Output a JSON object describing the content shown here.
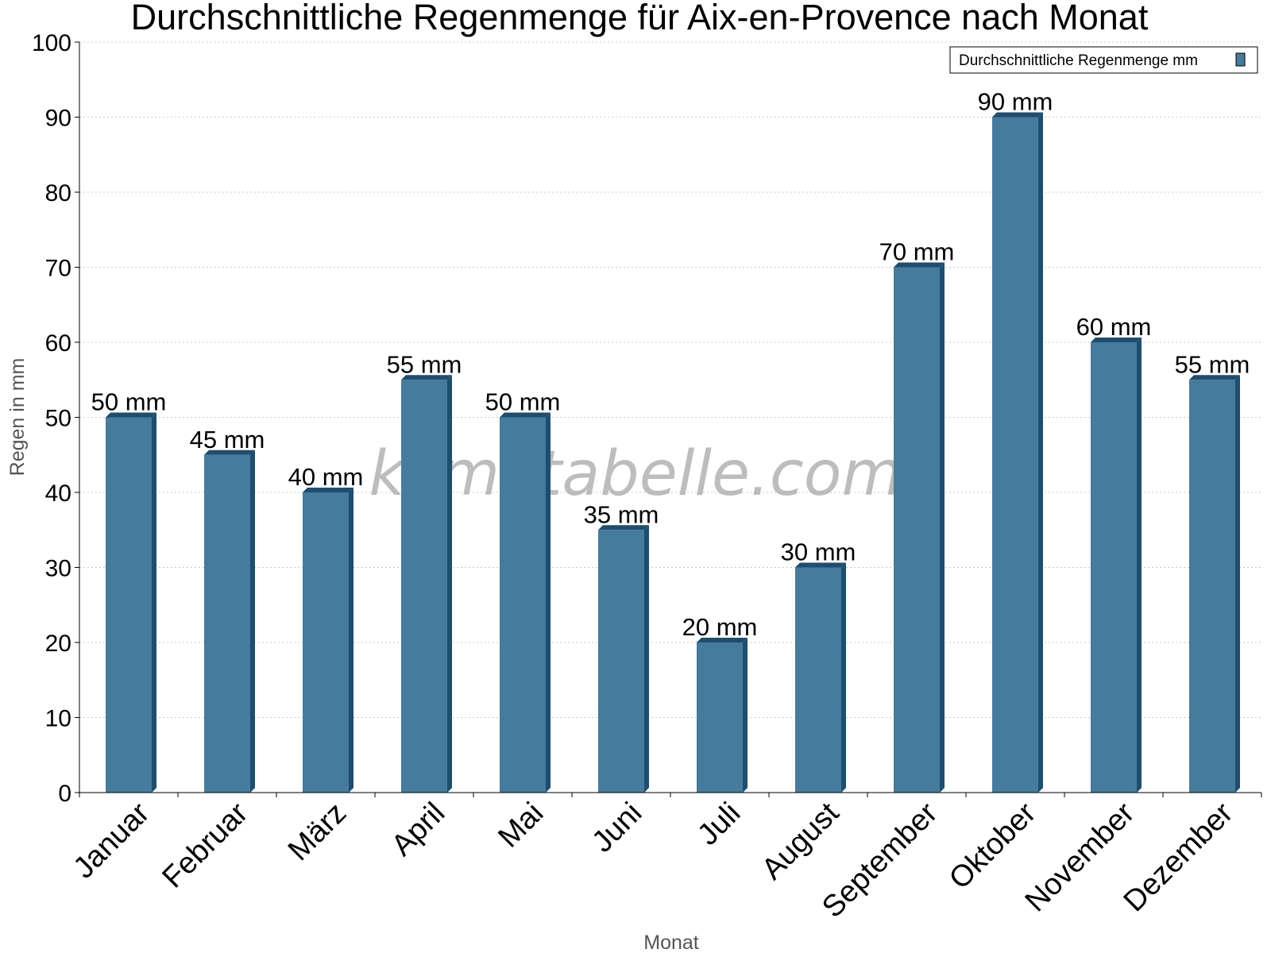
{
  "chart_data": {
    "type": "bar",
    "title": "Durchschnittliche Regenmenge für Aix-en-Provence nach Monat",
    "xlabel": "Monat",
    "ylabel": "Regen in mm",
    "ylim": [
      0,
      100
    ],
    "yticks": [
      "0",
      "10",
      "20",
      "30",
      "40",
      "50",
      "60",
      "70",
      "80",
      "90",
      "100"
    ],
    "categories": [
      "Januar",
      "Februar",
      "März",
      "April",
      "Mai",
      "Juni",
      "Juli",
      "August",
      "September",
      "Oktober",
      "November",
      "Dezember"
    ],
    "series": [
      {
        "name": "Durchschnittliche Regenmenge mm",
        "values": [
          50,
          45,
          40,
          55,
          50,
          35,
          20,
          30,
          70,
          90,
          60,
          55
        ],
        "labels": [
          "50 mm",
          "45 mm",
          "40 mm",
          "55 mm",
          "50 mm",
          "35 mm",
          "20 mm",
          "30 mm",
          "70 mm",
          "90 mm",
          "60 mm",
          "55 mm"
        ],
        "color": "#457b9d",
        "edge_color": "#1d4e70"
      }
    ],
    "grid": true,
    "legend_position": "top-right",
    "watermark": "klimatabelle.com"
  }
}
